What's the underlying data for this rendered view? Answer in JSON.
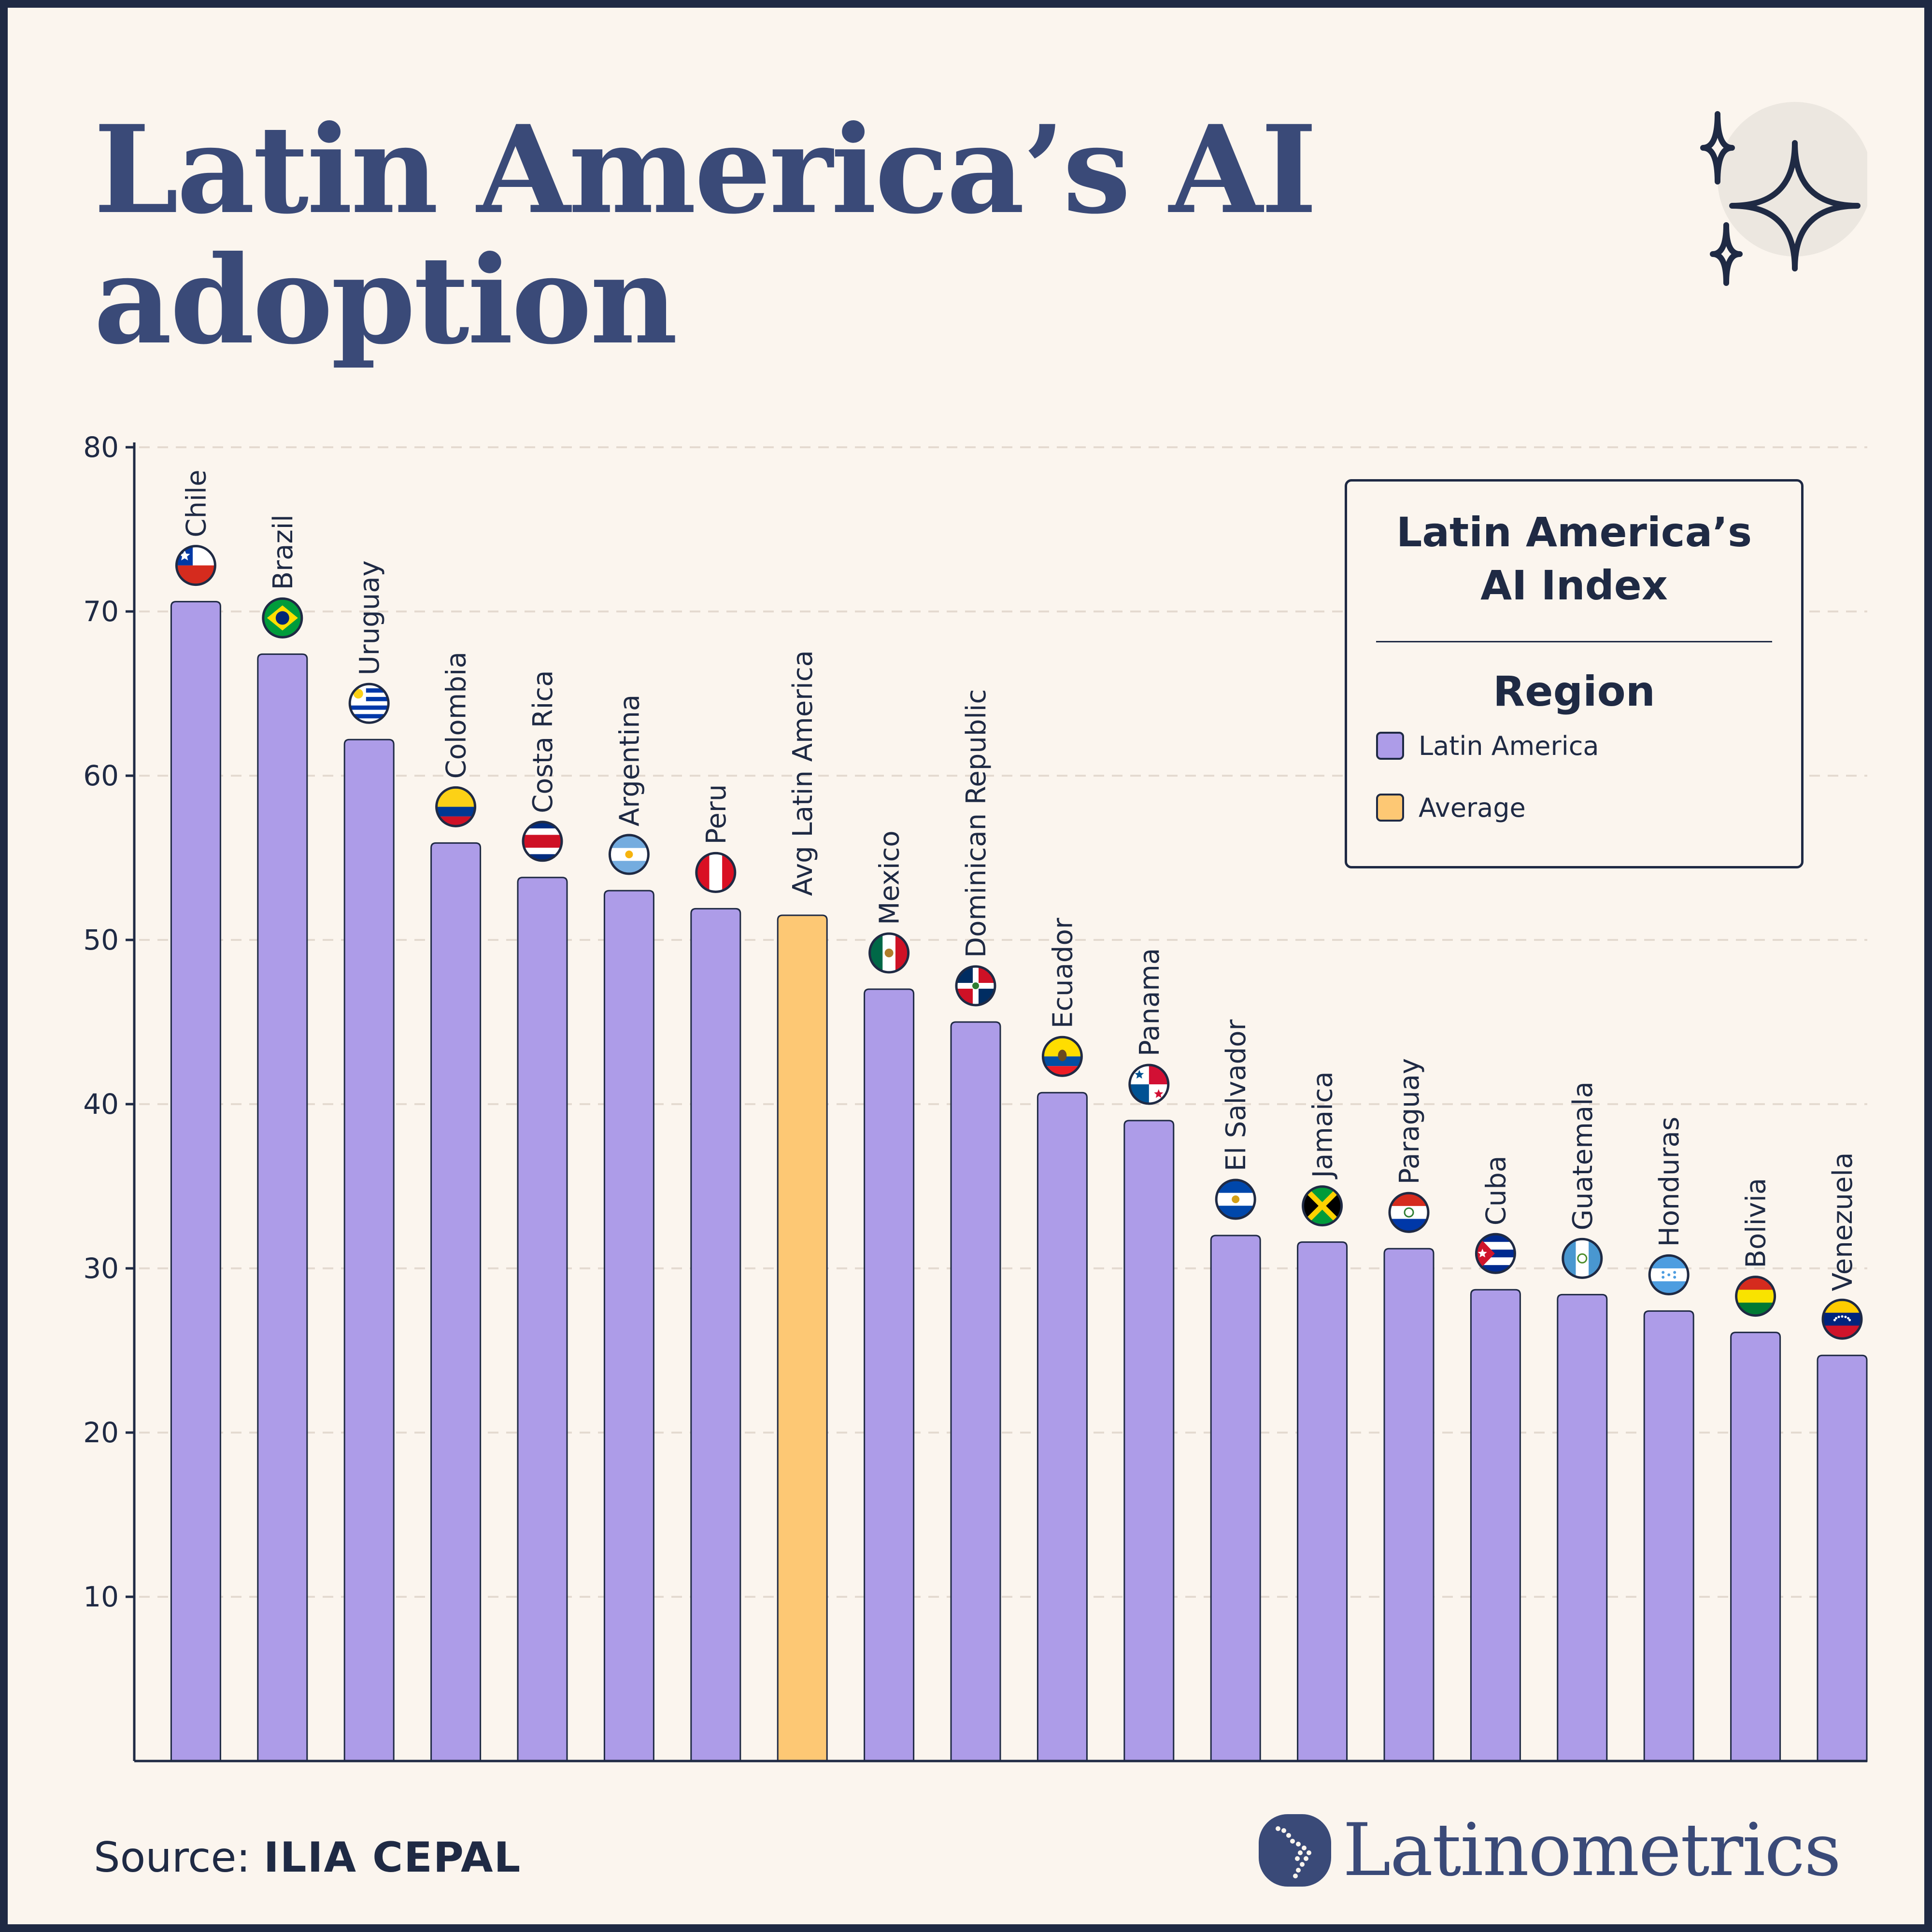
{
  "title": "Latin America’s AI adoption",
  "colors": {
    "latin_america": "#ad9ce8",
    "average": "#fdc874",
    "title": "#3a4a78",
    "ink": "#1f2a44",
    "background": "#fbf5ee"
  },
  "legend": {
    "title": "Latin America’s\nAI Index",
    "subtitle": "Region",
    "items": [
      {
        "label": "Latin America",
        "color": "#ad9ce8"
      },
      {
        "label": "Average",
        "color": "#fdc874"
      }
    ]
  },
  "source": {
    "prefix": "Source:",
    "value": "ILIA CEPAL"
  },
  "brand": {
    "name": "Latinometrics",
    "icon": "latin-america-map-icon"
  },
  "decoration": {
    "icon": "sparkles-icon"
  },
  "chart_data": {
    "type": "bar",
    "ylim": [
      0,
      80
    ],
    "yticks": [
      10,
      20,
      30,
      40,
      50,
      60,
      70,
      80
    ],
    "grid": true,
    "legend_position": "top-right",
    "categories": [
      "Chile",
      "Brazil",
      "Uruguay",
      "Colombia",
      "Costa Rica",
      "Argentina",
      "Peru",
      "Avg Latin America",
      "Mexico",
      "Dominican Republic",
      "Ecuador",
      "Panama",
      "El Salvador",
      "Jamaica",
      "Paraguay",
      "Cuba",
      "Guatemala",
      "Honduras",
      "Bolivia",
      "Venezuela"
    ],
    "values": [
      70.6,
      67.4,
      62.2,
      55.9,
      53.8,
      53.0,
      51.9,
      51.5,
      47.0,
      45.0,
      40.7,
      39.0,
      32.0,
      31.6,
      31.2,
      28.7,
      28.4,
      27.4,
      26.1,
      24.7
    ],
    "groups": [
      "Latin America",
      "Latin America",
      "Latin America",
      "Latin America",
      "Latin America",
      "Latin America",
      "Latin America",
      "Average",
      "Latin America",
      "Latin America",
      "Latin America",
      "Latin America",
      "Latin America",
      "Latin America",
      "Latin America",
      "Latin America",
      "Latin America",
      "Latin America",
      "Latin America",
      "Latin America"
    ],
    "flags": [
      "chile-flag-icon",
      "brazil-flag-icon",
      "uruguay-flag-icon",
      "colombia-flag-icon",
      "costa-rica-flag-icon",
      "argentina-flag-icon",
      "peru-flag-icon",
      null,
      "mexico-flag-icon",
      "dominican-republic-flag-icon",
      "ecuador-flag-icon",
      "panama-flag-icon",
      "el-salvador-flag-icon",
      "jamaica-flag-icon",
      "paraguay-flag-icon",
      "cuba-flag-icon",
      "guatemala-flag-icon",
      "honduras-flag-icon",
      "bolivia-flag-icon",
      "venezuela-flag-icon"
    ]
  }
}
